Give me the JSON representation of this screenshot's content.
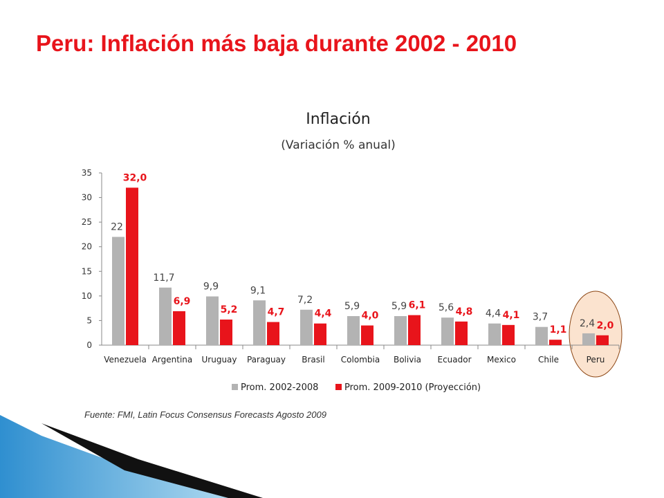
{
  "slide": {
    "title": "Peru: Inflación más baja durante 2002 - 2010",
    "source": "Fuente: FMI, Latin Focus Consensus Forecasts Agosto 2009"
  },
  "colors": {
    "title": "#e8141b",
    "series_gray": "#b3b3b3",
    "series_red": "#e8141b",
    "highlight_fill": "#fbe3cf",
    "highlight_stroke": "#8b4513",
    "decor_blue": "#4aa3d6"
  },
  "chart_data": {
    "type": "bar",
    "title": "Inflación",
    "subtitle": "(Variación % anual)",
    "categories": [
      "Venezuela",
      "Argentina",
      "Uruguay",
      "Paraguay",
      "Brasil",
      "Colombia",
      "Bolivia",
      "Ecuador",
      "Mexico",
      "Chile",
      "Peru"
    ],
    "series": [
      {
        "name": "Prom. 2002-2008",
        "values": [
          22,
          11.7,
          9.9,
          9.1,
          7.2,
          5.9,
          5.9,
          5.6,
          4.4,
          3.7,
          2.4
        ],
        "labels": [
          "22",
          "11,7",
          "9,9",
          "9,1",
          "7,2",
          "5,9",
          "5,9",
          "5,6",
          "4,4",
          "3,7",
          "2,4"
        ]
      },
      {
        "name": "Prom. 2009-2010 (Proyección)",
        "values": [
          32.0,
          6.9,
          5.2,
          4.7,
          4.4,
          4.0,
          6.1,
          4.8,
          4.1,
          1.1,
          2.0
        ],
        "labels": [
          "32,0",
          "6,9",
          "5,2",
          "4,7",
          "4,4",
          "4,0",
          "6,1",
          "4,8",
          "4,1",
          "1,1",
          "2,0"
        ]
      }
    ],
    "yticks": [
      "0",
      "5",
      "10",
      "15",
      "20",
      "25",
      "30",
      "35"
    ],
    "ylim": [
      0,
      35
    ],
    "grid": false,
    "legend_position": "bottom",
    "highlight_category": "Peru"
  }
}
